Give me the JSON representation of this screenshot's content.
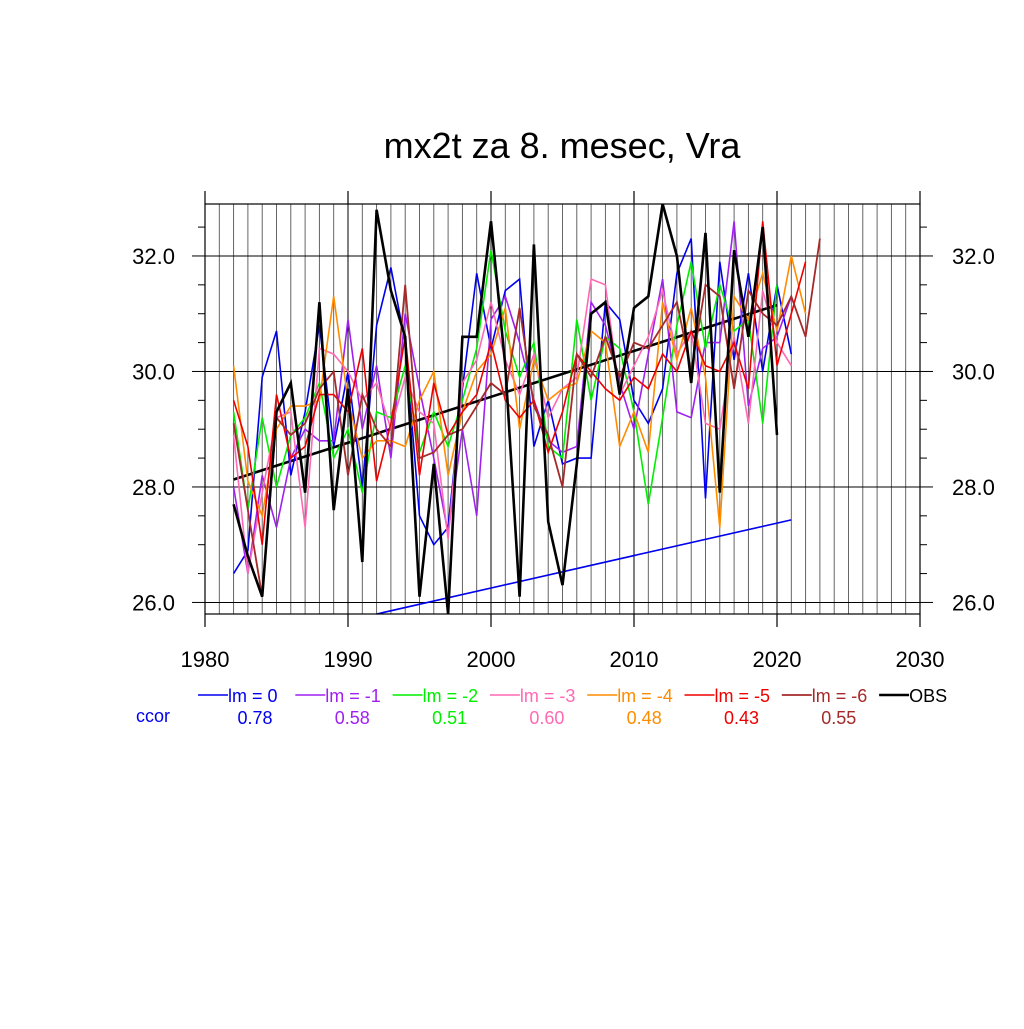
{
  "chart_data": {
    "type": "line",
    "title": "mx2t za 8. mesec, Vra",
    "xlabel": "",
    "ylabel": "",
    "xlim": [
      1980,
      2030
    ],
    "ylim": [
      25.8,
      32.9
    ],
    "x_ticks": [
      "1980",
      "1990",
      "2000",
      "2010",
      "2020",
      "2030"
    ],
    "y_ticks": [
      "26.0",
      "28.0",
      "30.0",
      "32.0"
    ],
    "x_tick_values": [
      1980,
      1990,
      2000,
      2010,
      2020,
      2030
    ],
    "y_tick_values": [
      26,
      28,
      30,
      32
    ],
    "grid": true,
    "legend_position": "bottom",
    "ccor_label": "ccor",
    "series": [
      {
        "name": "lm = 0",
        "color": "#0000ee",
        "width": 1.6,
        "ccor": "0.78",
        "x_start": 1982,
        "values": [
          26.5,
          26.9,
          29.9,
          30.7,
          28.2,
          29.3,
          30.8,
          28.7,
          30.0,
          28.0,
          30.8,
          31.8,
          30.5,
          27.5,
          27.0,
          27.3,
          29.7,
          31.7,
          30.4,
          31.4,
          31.6,
          28.7,
          29.5,
          28.4,
          28.5,
          28.5,
          31.2,
          30.9,
          29.5,
          29.1,
          29.7,
          31.7,
          32.3,
          27.8,
          31.9,
          30.2,
          31.7,
          30.0,
          31.5,
          30.3
        ]
      },
      {
        "name": "lm = -1",
        "color": "#a020f0",
        "width": 1.6,
        "ccor": "0.58",
        "x_start": 1982,
        "values": [
          28.0,
          26.5,
          28.2,
          27.3,
          28.5,
          29.0,
          28.8,
          28.8,
          30.9,
          29.0,
          30.1,
          28.5,
          31.0,
          29.7,
          28.5,
          27.2,
          29.0,
          27.5,
          30.9,
          31.3,
          30.5,
          29.5,
          28.8,
          28.6,
          28.7,
          31.2,
          30.8,
          29.8,
          29.0,
          30.3,
          31.6,
          29.3,
          29.2,
          30.5,
          30.5,
          32.6,
          29.4,
          30.4,
          30.6,
          31.3
        ]
      },
      {
        "name": "lm = -2",
        "color": "#00ee00",
        "width": 1.6,
        "ccor": "0.51",
        "x_start": 1982,
        "values": [
          29.3,
          27.6,
          29.2,
          28.0,
          28.9,
          29.2,
          29.8,
          28.5,
          29.0,
          27.9,
          29.3,
          29.2,
          30.1,
          28.6,
          29.3,
          28.7,
          29.5,
          30.4,
          32.1,
          30.7,
          29.9,
          30.5,
          28.7,
          28.5,
          30.9,
          29.5,
          30.6,
          30.4,
          29.3,
          27.7,
          29.2,
          30.8,
          31.9,
          30.4,
          31.5,
          30.7,
          30.9,
          29.1,
          31.5
        ]
      },
      {
        "name": "lm = -3",
        "color": "#ff69b4",
        "width": 1.6,
        "ccor": "0.60",
        "x_start": 1982,
        "values": [
          28.9,
          26.5,
          27.9,
          29.2,
          29.3,
          27.3,
          30.4,
          30.3,
          30.0,
          29.5,
          29.8,
          29.0,
          29.9,
          29.3,
          29.1,
          27.1,
          29.8,
          30.2,
          31.2,
          30.2,
          29.6,
          30.3,
          29.2,
          29.7,
          29.9,
          31.6,
          31.5,
          29.6,
          30.1,
          30.6,
          31.4,
          30.3,
          30.7,
          29.1,
          29.0,
          30.6,
          29.1,
          31.4,
          30.5,
          30.1
        ]
      },
      {
        "name": "lm = -4",
        "color": "#ff8c00",
        "width": 1.6,
        "ccor": "0.48",
        "x_start": 1982,
        "values": [
          30.1,
          28.1,
          27.5,
          29.0,
          29.4,
          29.4,
          29.5,
          31.3,
          29.5,
          28.5,
          28.8,
          28.8,
          28.7,
          29.5,
          30.0,
          28.2,
          29.3,
          30.0,
          30.3,
          31.1,
          29.0,
          30.2,
          29.5,
          29.7,
          29.8,
          30.7,
          30.5,
          28.7,
          29.3,
          28.6,
          31.2,
          30.2,
          31.1,
          29.9,
          27.3,
          31.3,
          30.9,
          31.7,
          30.7,
          32.0,
          31.0
        ]
      },
      {
        "name": "lm = -5",
        "color": "#ee0000",
        "width": 1.6,
        "ccor": "0.43",
        "x_start": 1982,
        "values": [
          29.5,
          28.7,
          27.0,
          29.6,
          28.5,
          28.7,
          29.6,
          29.6,
          29.3,
          30.4,
          28.1,
          29.1,
          30.6,
          28.2,
          29.8,
          28.9,
          29.3,
          29.6,
          30.5,
          29.5,
          29.2,
          29.5,
          28.6,
          29.3,
          30.3,
          30.0,
          29.7,
          29.5,
          29.9,
          29.7,
          30.3,
          30.0,
          30.7,
          30.1,
          30.0,
          30.5,
          29.7,
          32.6,
          30.1,
          31.0,
          31.9
        ]
      },
      {
        "name": "lm = -6",
        "color": "#a52a2a",
        "width": 1.8,
        "ccor": "0.55",
        "x_start": 1982,
        "values": [
          29.1,
          27.6,
          26.1,
          29.2,
          28.9,
          29.1,
          29.7,
          30.0,
          28.2,
          29.6,
          29.0,
          28.7,
          31.5,
          28.5,
          28.6,
          28.9,
          29.0,
          29.4,
          29.8,
          29.6,
          31.1,
          29.4,
          28.9,
          28.0,
          30.3,
          29.9,
          30.6,
          29.9,
          30.5,
          30.4,
          30.8,
          31.2,
          30.0,
          31.5,
          31.3,
          29.7,
          31.4,
          31.0,
          30.8,
          31.3,
          30.6,
          32.3
        ]
      },
      {
        "name": "OBS",
        "color": "#000000",
        "width": 2.6,
        "ccor": "",
        "x_start": 1982,
        "values": [
          27.7,
          26.8,
          26.1,
          29.3,
          29.8,
          27.9,
          31.2,
          27.6,
          29.7,
          26.7,
          32.8,
          31.4,
          30.6,
          26.1,
          28.4,
          25.8,
          30.6,
          30.6,
          32.6,
          30.1,
          26.1,
          32.2,
          27.4,
          26.3,
          28.4,
          31.0,
          31.2,
          29.6,
          31.1,
          31.3,
          32.9,
          32.0,
          29.8,
          32.4,
          27.9,
          32.1,
          30.6,
          32.5,
          28.9
        ]
      }
    ],
    "trend_lines": [
      {
        "name": "OBS trend",
        "color": "#000000",
        "width": 2.6,
        "x": [
          1982,
          2020
        ],
        "y": [
          28.13,
          31.15
        ]
      },
      {
        "name": "lm = 0 trend",
        "color": "#0000ee",
        "width": 1.6,
        "x": [
          1992,
          2021
        ],
        "y": [
          25.8,
          27.43
        ]
      }
    ]
  }
}
